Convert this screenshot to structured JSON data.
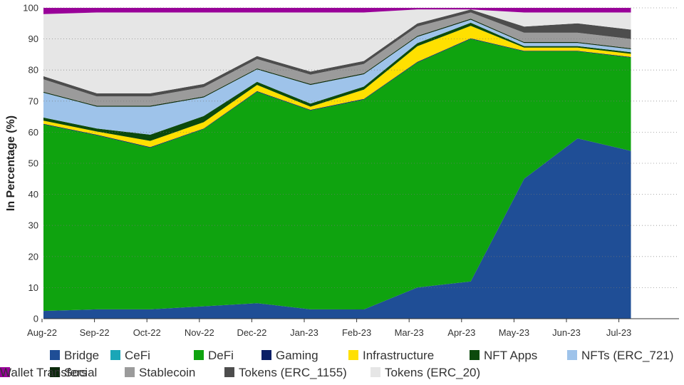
{
  "chart_data": {
    "type": "area",
    "stacked": true,
    "normalized_percent": true,
    "ylabel": "In Percentage (%)",
    "ylim": [
      0,
      100
    ],
    "yticks": [
      0,
      10,
      20,
      30,
      40,
      50,
      60,
      70,
      80,
      90,
      100
    ],
    "grid": "horizontal dotted",
    "legend_position": "bottom",
    "x": [
      "Aug-22",
      "Sep-22",
      "Oct-22",
      "Nov-22",
      "Dec-22",
      "Jan-23",
      "Feb-23",
      "Mar-23",
      "Apr-23",
      "May-23",
      "Jun-23",
      "Jul-23"
    ],
    "series": [
      {
        "name": "Bridge",
        "color": "#1f4e96",
        "values": [
          2.5,
          3,
          3,
          4,
          5,
          3,
          3,
          10,
          12,
          45,
          58,
          54
        ]
      },
      {
        "name": "CeFi",
        "color": "#1aa6b7",
        "values": [
          0,
          0,
          0,
          0,
          0,
          0,
          0,
          0,
          0,
          0,
          0,
          0
        ]
      },
      {
        "name": "DeFi",
        "color": "#0fa30f",
        "values": [
          60,
          56,
          52,
          57,
          68,
          64,
          68,
          72,
          78,
          41,
          28,
          30
        ]
      },
      {
        "name": "Gaming",
        "color": "#0a1f66",
        "values": [
          0.2,
          0.2,
          0.2,
          0.2,
          0.2,
          0.2,
          0.2,
          0.2,
          0.2,
          0.2,
          0.2,
          0.2
        ]
      },
      {
        "name": "Infrastructure",
        "color": "#ffe000",
        "values": [
          1,
          1,
          2,
          2,
          2,
          1,
          3,
          5,
          4,
          1,
          1,
          1
        ]
      },
      {
        "name": "NFT Apps",
        "color": "#0c4a0c",
        "values": [
          1,
          1,
          2,
          2,
          1,
          1,
          1,
          1,
          1,
          0.5,
          0.5,
          0.5
        ]
      },
      {
        "name": "NFTs (ERC_721)",
        "color": "#9ec3ea",
        "values": [
          8,
          7,
          9,
          6,
          4,
          6,
          4,
          2,
          1,
          1,
          1,
          1
        ]
      },
      {
        "name": "Social",
        "color": "#0b2a0b",
        "values": [
          0.3,
          0.3,
          0.3,
          0.3,
          0.3,
          0.3,
          0.3,
          0.3,
          0.3,
          0.3,
          0.3,
          0.3
        ]
      },
      {
        "name": "Stablecoin",
        "color": "#9b9b9b",
        "values": [
          4,
          3,
          3,
          3,
          3,
          3,
          3,
          3,
          2,
          3,
          3,
          3
        ]
      },
      {
        "name": "Tokens (ERC_1155)",
        "color": "#4d4d4d",
        "values": [
          1,
          1,
          1,
          1,
          1,
          1,
          1,
          1,
          1,
          2,
          3,
          3
        ]
      },
      {
        "name": "Tokens (ERC_20)",
        "color": "#e6e6e6",
        "values": [
          20,
          26,
          26,
          23,
          14,
          19,
          15.7,
          4.5,
          0,
          4.5,
          3.5,
          5.5
        ]
      },
      {
        "name": "Wallet Transfers",
        "color": "#990099",
        "values": [
          2,
          1.5,
          1.5,
          1.5,
          1.5,
          1.5,
          1.5,
          0.5,
          0.5,
          1.5,
          1.5,
          1.5
        ]
      }
    ]
  }
}
